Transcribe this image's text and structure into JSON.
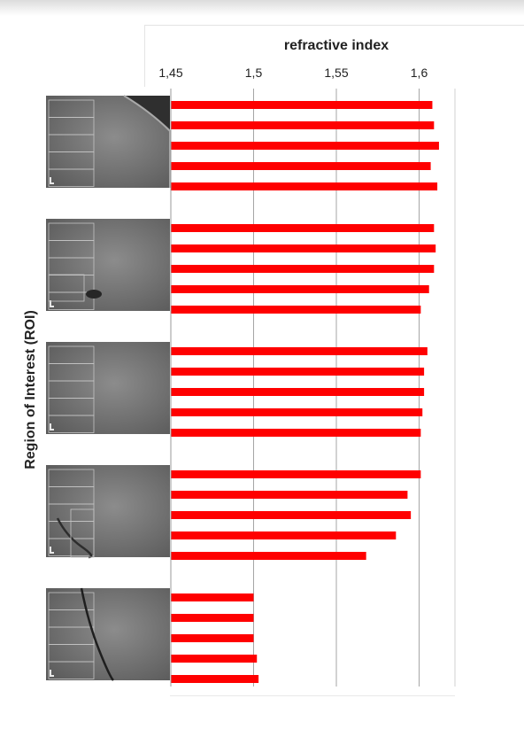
{
  "chart_data": {
    "type": "bar",
    "orientation": "horizontal",
    "title": "",
    "xlabel": "refractive index",
    "ylabel": "Region of Interest (ROI)",
    "xlim": [
      1.45,
      1.625
    ],
    "x_ticks": [
      "1,45",
      "1,5",
      "1,55",
      "1,6"
    ],
    "x_tick_values": [
      1.45,
      1.5,
      1.55,
      1.6
    ],
    "grid": "vertical",
    "bar_color": "#ff0000",
    "groups": [
      {
        "image": "roi-micrograph",
        "values": [
          1.608,
          1.609,
          1.612,
          1.607,
          1.611
        ]
      },
      {
        "image": "roi-micrograph",
        "values": [
          1.609,
          1.61,
          1.609,
          1.606,
          1.601
        ]
      },
      {
        "image": "roi-micrograph",
        "values": [
          1.605,
          1.603,
          1.603,
          1.602,
          1.601
        ]
      },
      {
        "image": "roi-micrograph",
        "values": [
          1.601,
          1.593,
          1.595,
          1.586,
          1.568
        ]
      },
      {
        "image": "roi-micrograph",
        "values": [
          1.5,
          1.5,
          1.5,
          1.502,
          1.503
        ]
      }
    ]
  }
}
